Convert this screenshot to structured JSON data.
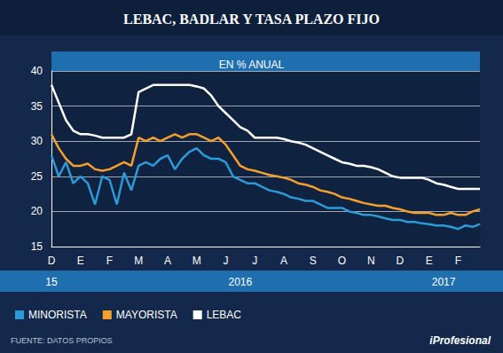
{
  "chart_data": {
    "type": "line",
    "title": "LEBAC, BADLAR Y TASA PLAZO FIJO",
    "subtitle": "EN % ANUAL",
    "source": "FUENTE: DATOS PROPIOS",
    "brand": "iProfesional",
    "categories": [
      "D",
      null,
      null,
      null,
      "E",
      null,
      null,
      null,
      "F",
      null,
      null,
      null,
      "M",
      null,
      null,
      null,
      "A",
      null,
      null,
      null,
      "M",
      null,
      null,
      null,
      "J",
      null,
      null,
      null,
      "J",
      null,
      null,
      null,
      "A",
      null,
      null,
      null,
      "S",
      null,
      null,
      null,
      "O",
      null,
      null,
      null,
      "N",
      null,
      null,
      null,
      "D",
      null,
      null,
      null,
      "E",
      null,
      null,
      null,
      "F",
      null,
      null,
      null
    ],
    "year_labels": [
      "15",
      null,
      null,
      null,
      null,
      null,
      null,
      null,
      null,
      null,
      null,
      null,
      null,
      null,
      null,
      null,
      null,
      null,
      null,
      null,
      null,
      null,
      null,
      null,
      null,
      null,
      "2016",
      null,
      null,
      null,
      null,
      null,
      null,
      null,
      null,
      null,
      null,
      null,
      null,
      null,
      null,
      null,
      null,
      null,
      null,
      null,
      null,
      null,
      null,
      null,
      null,
      null,
      null,
      null,
      "2017",
      null,
      null,
      null,
      null,
      null
    ],
    "ylim": [
      15,
      40
    ],
    "yticks": [
      15,
      20,
      25,
      30,
      35,
      40
    ],
    "grid": true,
    "legend": "bottom",
    "series": [
      {
        "name": "MINORISTA",
        "color": "#2d9ad8",
        "values": [
          28,
          25,
          27,
          24,
          25,
          24,
          21,
          25,
          24.5,
          21,
          25.5,
          23,
          26.5,
          27,
          26.5,
          27.5,
          28,
          26,
          27.5,
          28.5,
          29,
          28,
          27.5,
          27.5,
          27,
          25,
          24.5,
          24,
          24,
          23.5,
          23,
          22.8,
          22.5,
          22,
          21.8,
          21.5,
          21.5,
          21,
          20.5,
          20.5,
          20.5,
          20,
          19.8,
          19.5,
          19.5,
          19.3,
          19,
          18.8,
          18.8,
          18.5,
          18.5,
          18.3,
          18.2,
          18,
          18,
          17.8,
          17.5,
          18,
          17.8,
          18.2
        ]
      },
      {
        "name": "MAYORISTA",
        "color": "#f5a02c",
        "values": [
          31,
          29,
          27.5,
          26.5,
          26.5,
          26.8,
          26,
          25.8,
          26,
          26.5,
          27,
          26.5,
          30.5,
          30,
          30.5,
          30,
          30.5,
          31,
          30.5,
          31,
          31,
          30.5,
          30,
          30.5,
          29.5,
          28,
          26.5,
          26,
          25.8,
          25.5,
          25.2,
          25,
          24.8,
          24.5,
          24,
          23.8,
          23.5,
          23,
          22.8,
          22.5,
          22,
          21.8,
          21.5,
          21.2,
          21,
          20.8,
          20.8,
          20.5,
          20.3,
          20,
          19.8,
          19.8,
          19.8,
          19.5,
          19.5,
          19.8,
          19.5,
          19.5,
          20,
          20.3
        ]
      },
      {
        "name": "LEBAC",
        "color": "#ffffff",
        "values": [
          38,
          35.5,
          33,
          31.5,
          31,
          31,
          30.8,
          30.5,
          30.5,
          30.5,
          30.5,
          31,
          37,
          37.5,
          38,
          38,
          38,
          38,
          38,
          38,
          37.8,
          37.5,
          36.5,
          35,
          34,
          33,
          32,
          31.5,
          30.5,
          30.5,
          30.5,
          30.5,
          30.3,
          30,
          29.8,
          29.5,
          29,
          28.5,
          28,
          27.5,
          27,
          26.8,
          26.5,
          26.5,
          26.3,
          26,
          25.5,
          25,
          24.8,
          24.8,
          24.8,
          24.8,
          24.5,
          24,
          23.8,
          23.5,
          23.2,
          23.2,
          23.2,
          23.2
        ]
      }
    ]
  }
}
